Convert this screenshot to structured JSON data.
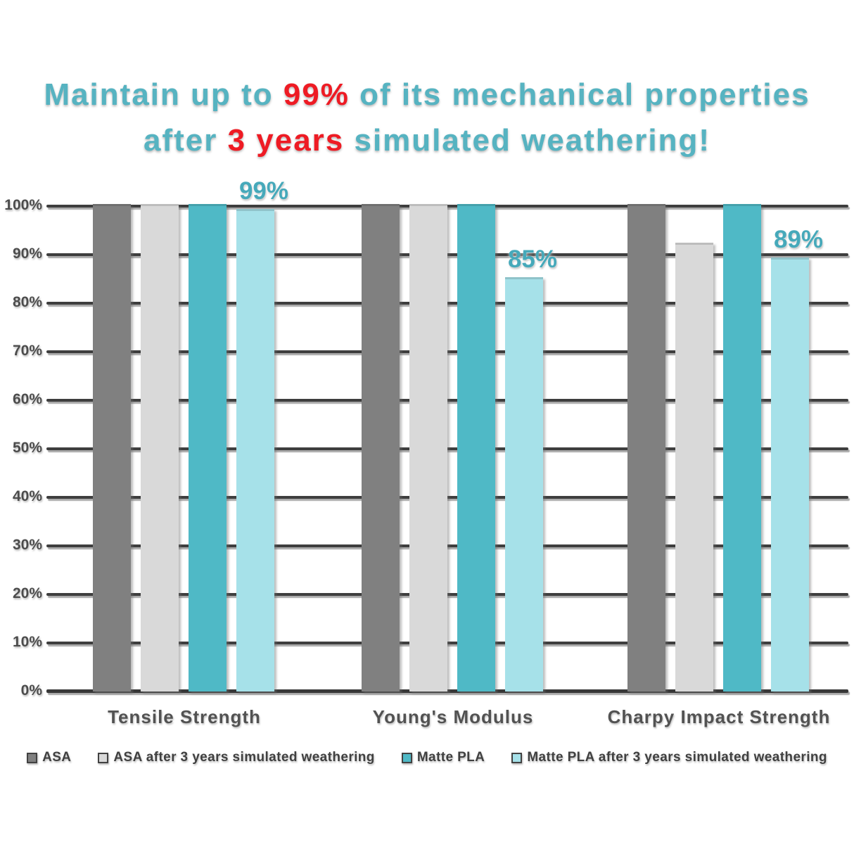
{
  "header": {
    "line1_segments": [
      {
        "text": "Maintain up to ",
        "color": "#56b3c1"
      },
      {
        "text": "99%",
        "color": "#ee1b24"
      },
      {
        "text": " of its mechanical properties",
        "color": "#56b3c1"
      }
    ],
    "line2_segments": [
      {
        "text": "after ",
        "color": "#56b3c1"
      },
      {
        "text": "3 years",
        "color": "#ee1b24"
      },
      {
        "text": " simulated weathering!",
        "color": "#56b3c1"
      }
    ]
  },
  "chart_data": {
    "type": "bar",
    "title": "Maintain up to 99% of its mechanical properties after 3 years simulated weathering!",
    "categories": [
      "Tensile Strength",
      "Young's Modulus",
      "Charpy Impact Strength"
    ],
    "series": [
      {
        "name": "ASA",
        "color": "#808080",
        "values": [
          100,
          100,
          100
        ],
        "labels": [
          "",
          "",
          ""
        ]
      },
      {
        "name": "ASA after 3 years simulated weathering",
        "color": "#d9d9d9",
        "values": [
          100,
          100,
          92
        ],
        "labels": [
          "",
          "",
          ""
        ]
      },
      {
        "name": "Matte PLA",
        "color": "#4fb9c6",
        "values": [
          100,
          100,
          100
        ],
        "labels": [
          "",
          "",
          ""
        ]
      },
      {
        "name": "Matte PLA after 3 years simulated weathering",
        "color": "#a6e1e9",
        "values": [
          99,
          85,
          89
        ],
        "labels": [
          "99%",
          "85%",
          "89%"
        ]
      }
    ],
    "ylabel": "",
    "xlabel": "",
    "ylim": [
      0,
      100
    ],
    "y_ticks": [
      "0%",
      "10%",
      "20%",
      "30%",
      "40%",
      "50%",
      "60%",
      "70%",
      "80%",
      "90%",
      "100%"
    ],
    "grid": true,
    "legend_position": "bottom"
  },
  "colors": {
    "headline_teal": "#56b3c1",
    "headline_red": "#ee1b24",
    "value_label_teal": "#46a9ba",
    "gridline": "#3e3e3e",
    "axis_text": "#4c4c4c"
  }
}
